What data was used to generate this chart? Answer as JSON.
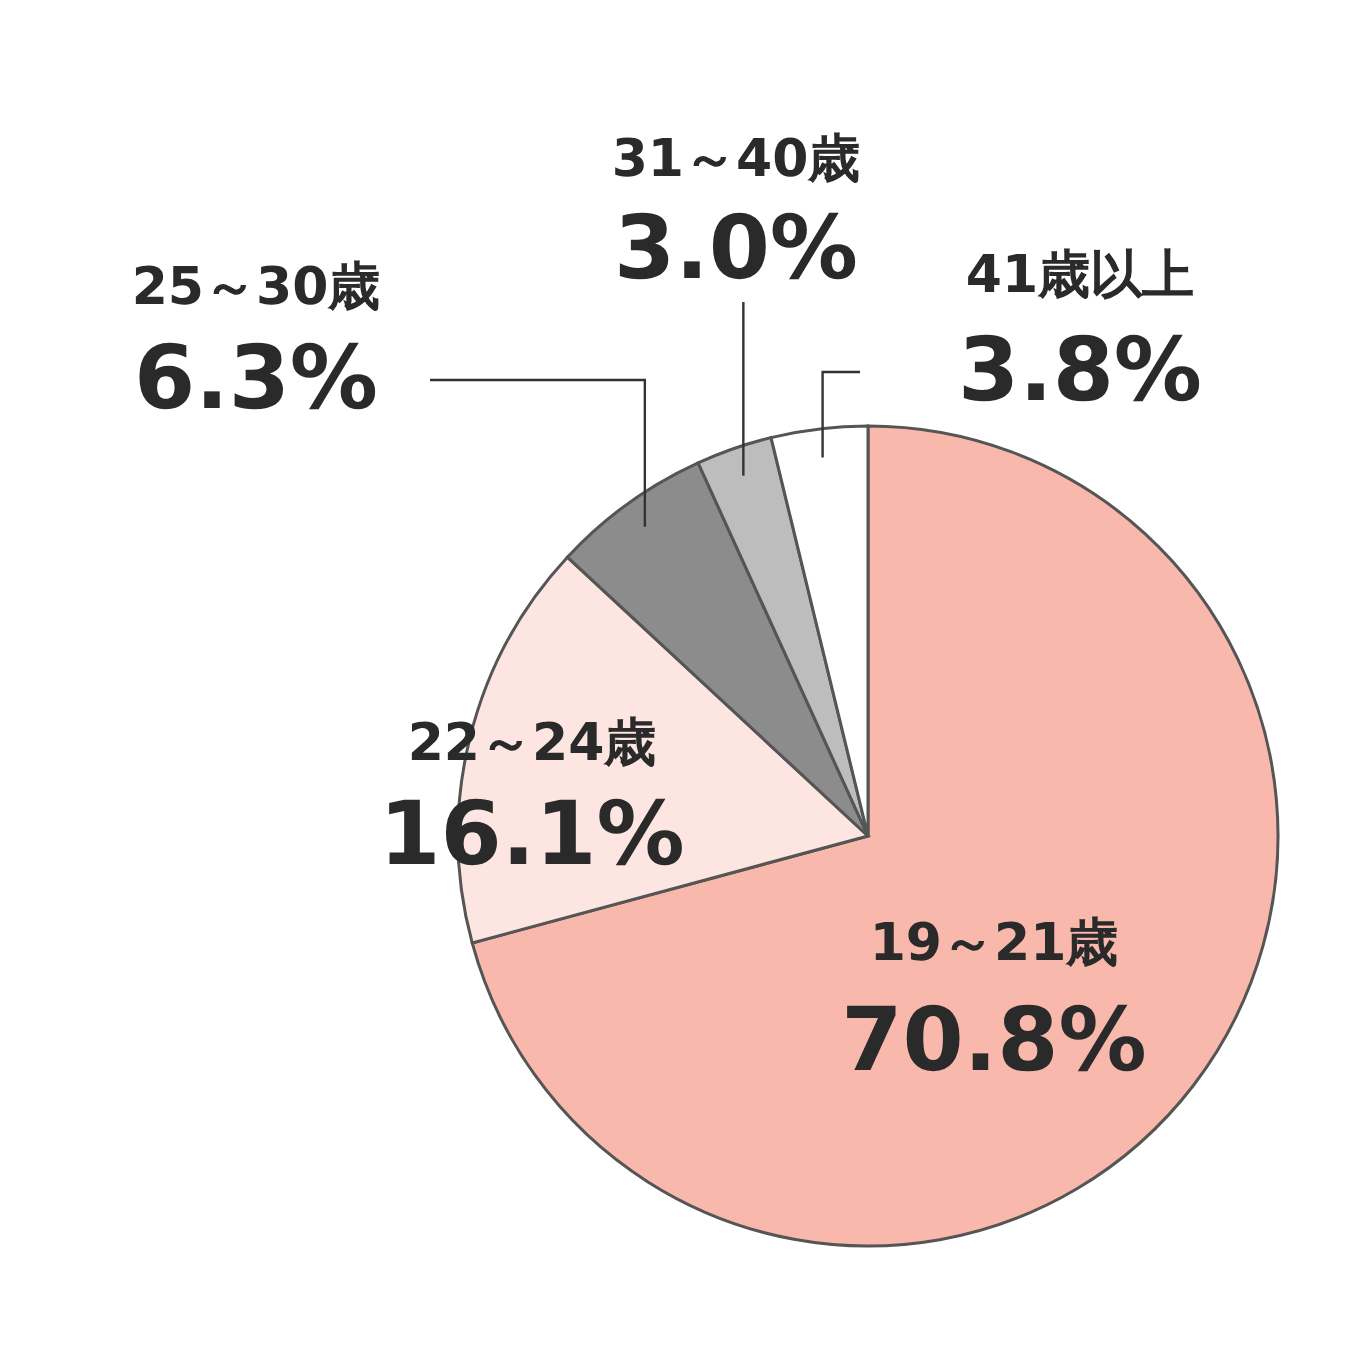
{
  "chart_data": {
    "type": "pie",
    "categories": [
      "19～21歳",
      "22～24歳",
      "25～30歳",
      "31～40歳",
      "41歳以上"
    ],
    "values": [
      70.8,
      16.1,
      6.3,
      3.0,
      3.8
    ],
    "value_labels": [
      "70.8%",
      "16.1%",
      "6.3%",
      "3.0%",
      "3.8%"
    ],
    "colors": [
      "#f9b8ac",
      "#fde6e2",
      "#8c8c8c",
      "#bdbdbd",
      "#ffffff"
    ]
  }
}
